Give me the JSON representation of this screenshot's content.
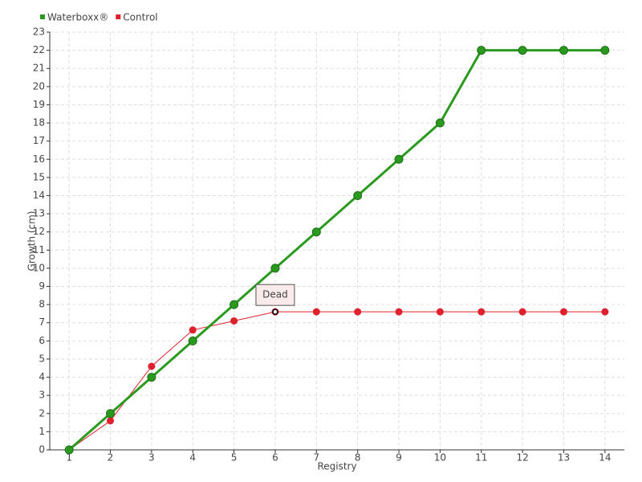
{
  "chart_data": {
    "type": "line",
    "x": [
      1,
      2,
      3,
      4,
      5,
      6,
      7,
      8,
      9,
      10,
      11,
      12,
      13,
      14
    ],
    "xlim": [
      0.53,
      14.47
    ],
    "xticks": [
      1,
      2,
      3,
      4,
      5,
      6,
      7,
      8,
      9,
      10,
      11,
      12,
      13,
      14
    ],
    "ylim": [
      0,
      23
    ],
    "yticks": [
      0,
      1,
      2,
      3,
      4,
      5,
      6,
      7,
      8,
      9,
      10,
      11,
      12,
      13,
      14,
      15,
      16,
      17,
      18,
      19,
      20,
      21,
      22,
      23
    ],
    "x_label": "Registry",
    "y_label": "Growth (cm)",
    "grid": true,
    "legend": "top-left",
    "series": [
      {
        "name": "Waterboxx®",
        "color": "#2a9a1e",
        "values": [
          0,
          2,
          4,
          6,
          8,
          10,
          12,
          14,
          16,
          18,
          22,
          22,
          22,
          22
        ]
      },
      {
        "name": "Control",
        "color": "#e0202c",
        "values": [
          0,
          1.6,
          4.6,
          6.6,
          7.1,
          7.6,
          7.6,
          7.6,
          7.6,
          7.6,
          7.6,
          7.6,
          7.6,
          7.6
        ]
      }
    ],
    "annotation": {
      "text": "Dead",
      "x": 6,
      "y": 7.6
    }
  }
}
